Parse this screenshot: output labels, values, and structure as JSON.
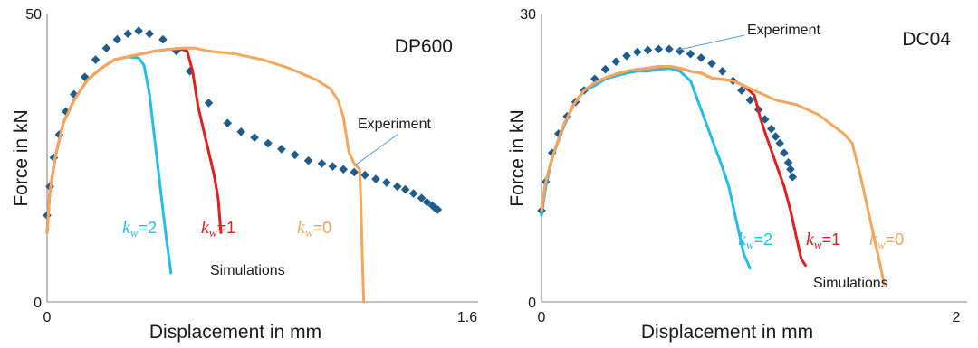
{
  "chart_data": [
    {
      "type": "line",
      "title": "DP600",
      "xlabel": "Displacement in mm",
      "ylabel": "Force in kN",
      "xlim": [
        0,
        1.6
      ],
      "ylim": [
        0,
        50
      ],
      "x_ticks": [
        "0",
        "1.6"
      ],
      "y_ticks": [
        "0",
        "50"
      ],
      "grid": false,
      "annotations": {
        "experiment": "Experiment",
        "simulations": "Simulations"
      },
      "series": [
        {
          "key": "experiment",
          "style": "markers",
          "color": "#1f5c8c",
          "points": [
            [
              0.0,
              15
            ],
            [
              0.01,
              20
            ],
            [
              0.025,
              25
            ],
            [
              0.045,
              29
            ],
            [
              0.07,
              33
            ],
            [
              0.1,
              36
            ],
            [
              0.14,
              39
            ],
            [
              0.18,
              42
            ],
            [
              0.22,
              44
            ],
            [
              0.26,
              45.5
            ],
            [
              0.3,
              46.5
            ],
            [
              0.34,
              47
            ],
            [
              0.38,
              46.5
            ],
            [
              0.43,
              45.5
            ],
            [
              0.48,
              43.5
            ],
            [
              0.53,
              40
            ],
            [
              0.6,
              34.5
            ],
            [
              0.67,
              31
            ],
            [
              0.72,
              29.5
            ],
            [
              0.77,
              28.5
            ],
            [
              0.82,
              27.5
            ],
            [
              0.87,
              26.5
            ],
            [
              0.92,
              25.5
            ],
            [
              0.97,
              24.5
            ],
            [
              1.02,
              24
            ],
            [
              1.06,
              23.5
            ],
            [
              1.1,
              23
            ],
            [
              1.14,
              22.5
            ],
            [
              1.18,
              22
            ],
            [
              1.22,
              21.3
            ],
            [
              1.26,
              20.7
            ],
            [
              1.3,
              20
            ],
            [
              1.33,
              19.5
            ],
            [
              1.36,
              18.8
            ],
            [
              1.39,
              18
            ],
            [
              1.41,
              17.3
            ],
            [
              1.43,
              16.7
            ],
            [
              1.44,
              16.3
            ],
            [
              1.45,
              16
            ]
          ]
        },
        {
          "label_prefix": "k",
          "label_sub": "w",
          "label_suffix": "=2",
          "color": "#25bde8",
          "label_color": "#25bde8",
          "points": [
            [
              0,
              12
            ],
            [
              0.01,
              19
            ],
            [
              0.03,
              25
            ],
            [
              0.06,
              31
            ],
            [
              0.1,
              35
            ],
            [
              0.15,
              38.5
            ],
            [
              0.2,
              40.5
            ],
            [
              0.25,
              42
            ],
            [
              0.3,
              42.5
            ],
            [
              0.34,
              42.3
            ],
            [
              0.36,
              41
            ],
            [
              0.38,
              36
            ],
            [
              0.4,
              28
            ],
            [
              0.42,
              20
            ],
            [
              0.44,
              12
            ],
            [
              0.46,
              5
            ]
          ]
        },
        {
          "label_prefix": "k",
          "label_sub": "w",
          "label_suffix": "=1",
          "color": "#e02020",
          "label_color": "#e02020",
          "points": [
            [
              0,
              12
            ],
            [
              0.01,
              19
            ],
            [
              0.03,
              25
            ],
            [
              0.06,
              31
            ],
            [
              0.1,
              35
            ],
            [
              0.15,
              38.5
            ],
            [
              0.2,
              40.5
            ],
            [
              0.25,
              42
            ],
            [
              0.3,
              42.5
            ],
            [
              0.35,
              43
            ],
            [
              0.4,
              43.5
            ],
            [
              0.45,
              43.8
            ],
            [
              0.5,
              43.8
            ],
            [
              0.52,
              43.5
            ],
            [
              0.54,
              40
            ],
            [
              0.56,
              34
            ],
            [
              0.58,
              30
            ],
            [
              0.6,
              26
            ],
            [
              0.62,
              22
            ],
            [
              0.635,
              18
            ],
            [
              0.645,
              12
            ]
          ]
        },
        {
          "label_prefix": "k",
          "label_sub": "w",
          "label_suffix": "=0",
          "color": "#f2a65e",
          "label_color": "#f2a65e",
          "points": [
            [
              0,
              12
            ],
            [
              0.01,
              19
            ],
            [
              0.03,
              25
            ],
            [
              0.06,
              31
            ],
            [
              0.1,
              35
            ],
            [
              0.15,
              38.5
            ],
            [
              0.2,
              40.5
            ],
            [
              0.25,
              42
            ],
            [
              0.3,
              42.5
            ],
            [
              0.35,
              43
            ],
            [
              0.4,
              43.5
            ],
            [
              0.45,
              43.8
            ],
            [
              0.5,
              44
            ],
            [
              0.55,
              44
            ],
            [
              0.6,
              43.5
            ],
            [
              0.7,
              43
            ],
            [
              0.8,
              42
            ],
            [
              0.9,
              40.5
            ],
            [
              1.0,
              38.5
            ],
            [
              1.05,
              37
            ],
            [
              1.08,
              35
            ],
            [
              1.1,
              32
            ],
            [
              1.12,
              26
            ],
            [
              1.14,
              24
            ],
            [
              1.16,
              23
            ],
            [
              1.165,
              17
            ],
            [
              1.17,
              8
            ],
            [
              1.175,
              0
            ]
          ]
        }
      ]
    },
    {
      "type": "line",
      "title": "DC04",
      "xlabel": "Displacement in mm",
      "ylabel": "Force in kN",
      "xlim": [
        0,
        2
      ],
      "ylim": [
        0,
        30
      ],
      "x_ticks": [
        "0",
        "2"
      ],
      "y_ticks": [
        "0",
        "30"
      ],
      "grid": false,
      "annotations": {
        "experiment": "Experiment",
        "simulations": "Simulations"
      },
      "series": [
        {
          "key": "experiment",
          "style": "markers",
          "color": "#1f5c8c",
          "points": [
            [
              0.0,
              9.5
            ],
            [
              0.02,
              12.5
            ],
            [
              0.05,
              15.5
            ],
            [
              0.08,
              17.5
            ],
            [
              0.12,
              19.3
            ],
            [
              0.16,
              20.8
            ],
            [
              0.2,
              22
            ],
            [
              0.25,
              23.2
            ],
            [
              0.3,
              24.2
            ],
            [
              0.35,
              25
            ],
            [
              0.4,
              25.6
            ],
            [
              0.45,
              26
            ],
            [
              0.5,
              26.2
            ],
            [
              0.55,
              26.3
            ],
            [
              0.6,
              26.3
            ],
            [
              0.65,
              26.1
            ],
            [
              0.7,
              25.8
            ],
            [
              0.75,
              25.4
            ],
            [
              0.8,
              24.8
            ],
            [
              0.85,
              24
            ],
            [
              0.9,
              23
            ],
            [
              0.94,
              22
            ],
            [
              0.98,
              21
            ],
            [
              1.02,
              20
            ],
            [
              1.05,
              19
            ],
            [
              1.08,
              18
            ],
            [
              1.1,
              17.2
            ],
            [
              1.12,
              16.5
            ],
            [
              1.14,
              15.5
            ],
            [
              1.16,
              14.5
            ],
            [
              1.17,
              13.8
            ],
            [
              1.18,
              13
            ]
          ]
        },
        {
          "label_prefix": "k",
          "label_sub": "w",
          "label_suffix": "=2",
          "color": "#25bde8",
          "label_color": "#25bde8",
          "points": [
            [
              0,
              9
            ],
            [
              0.02,
              12
            ],
            [
              0.05,
              15
            ],
            [
              0.1,
              18
            ],
            [
              0.15,
              20.5
            ],
            [
              0.2,
              22
            ],
            [
              0.25,
              22.5
            ],
            [
              0.3,
              23.2
            ],
            [
              0.35,
              23.5
            ],
            [
              0.4,
              23.8
            ],
            [
              0.45,
              24
            ],
            [
              0.5,
              24
            ],
            [
              0.55,
              24.2
            ],
            [
              0.6,
              24.3
            ],
            [
              0.65,
              24
            ],
            [
              0.7,
              23
            ],
            [
              0.75,
              20
            ],
            [
              0.8,
              17
            ],
            [
              0.85,
              14
            ],
            [
              0.88,
              12
            ],
            [
              0.92,
              8
            ],
            [
              0.95,
              5
            ],
            [
              0.98,
              3.5
            ]
          ]
        },
        {
          "label_prefix": "k",
          "label_sub": "w",
          "label_suffix": "=1",
          "color": "#e02020",
          "label_color": "#e02020",
          "points": [
            [
              0,
              9.5
            ],
            [
              0.02,
              12.5
            ],
            [
              0.05,
              15
            ],
            [
              0.1,
              18.2
            ],
            [
              0.15,
              20.5
            ],
            [
              0.2,
              22
            ],
            [
              0.25,
              22.8
            ],
            [
              0.3,
              23.3
            ],
            [
              0.35,
              23.7
            ],
            [
              0.4,
              24
            ],
            [
              0.45,
              24.2
            ],
            [
              0.5,
              24.3
            ],
            [
              0.55,
              24.5
            ],
            [
              0.6,
              24.5
            ],
            [
              0.65,
              24.3
            ],
            [
              0.7,
              24
            ],
            [
              0.75,
              23.8
            ],
            [
              0.8,
              23.3
            ],
            [
              0.9,
              23
            ],
            [
              0.95,
              22.5
            ],
            [
              1.0,
              21.5
            ],
            [
              1.03,
              19
            ],
            [
              1.06,
              17
            ],
            [
              1.1,
              14.5
            ],
            [
              1.14,
              12
            ],
            [
              1.17,
              9.5
            ],
            [
              1.2,
              6.5
            ],
            [
              1.22,
              4.5
            ],
            [
              1.24,
              3.8
            ]
          ]
        },
        {
          "label_prefix": "k",
          "label_sub": "w",
          "label_suffix": "=0",
          "color": "#f2a65e",
          "label_color": "#f2a65e",
          "points": [
            [
              0,
              9.5
            ],
            [
              0.02,
              12.5
            ],
            [
              0.05,
              15
            ],
            [
              0.1,
              18.2
            ],
            [
              0.15,
              20.5
            ],
            [
              0.2,
              22
            ],
            [
              0.25,
              22.8
            ],
            [
              0.3,
              23.3
            ],
            [
              0.35,
              23.7
            ],
            [
              0.4,
              24
            ],
            [
              0.45,
              24.2
            ],
            [
              0.5,
              24.3
            ],
            [
              0.55,
              24.5
            ],
            [
              0.6,
              24.5
            ],
            [
              0.65,
              24.3
            ],
            [
              0.7,
              24
            ],
            [
              0.75,
              23.8
            ],
            [
              0.8,
              23.3
            ],
            [
              0.9,
              23
            ],
            [
              0.95,
              22.5
            ],
            [
              1.0,
              22
            ],
            [
              1.05,
              21.5
            ],
            [
              1.1,
              21
            ],
            [
              1.2,
              20.5
            ],
            [
              1.3,
              19.5
            ],
            [
              1.36,
              18.5
            ],
            [
              1.42,
              17.5
            ],
            [
              1.46,
              16.5
            ],
            [
              1.5,
              13
            ],
            [
              1.53,
              10
            ],
            [
              1.56,
              7
            ],
            [
              1.59,
              4
            ],
            [
              1.61,
              1.8
            ]
          ]
        }
      ]
    }
  ]
}
